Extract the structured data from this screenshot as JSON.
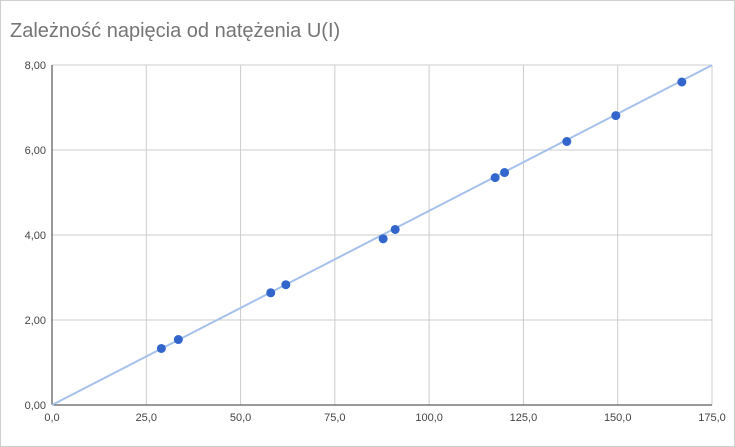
{
  "chart_data": {
    "type": "scatter",
    "title": "Zależność napięcia od natężenia U(I)",
    "xlabel": "",
    "ylabel": "",
    "xlim": [
      0,
      175
    ],
    "ylim": [
      0,
      8
    ],
    "x_ticks": [
      0,
      25,
      50,
      75,
      100,
      125,
      150,
      175
    ],
    "y_ticks": [
      0,
      2,
      4,
      6,
      8
    ],
    "x_tick_labels": [
      "0,0",
      "25,0",
      "50,0",
      "75,0",
      "100,0",
      "125,0",
      "150,0",
      "175,0"
    ],
    "y_tick_labels": [
      "0,00",
      "2,00",
      "4,00",
      "6,00",
      "8,00"
    ],
    "grid": true,
    "legend": "none",
    "series": [
      {
        "color": "#3366cc",
        "points": [
          {
            "x": 29.0,
            "y": 1.33
          },
          {
            "x": 33.5,
            "y": 1.54
          },
          {
            "x": 58.0,
            "y": 2.64
          },
          {
            "x": 62.0,
            "y": 2.83
          },
          {
            "x": 87.8,
            "y": 3.91
          },
          {
            "x": 91.0,
            "y": 4.13
          },
          {
            "x": 117.5,
            "y": 5.35
          },
          {
            "x": 120.0,
            "y": 5.47
          },
          {
            "x": 136.5,
            "y": 6.2
          },
          {
            "x": 149.5,
            "y": 6.81
          },
          {
            "x": 167.0,
            "y": 7.6
          }
        ]
      }
    ],
    "trendline": {
      "type": "linear",
      "color": "#a6c1ea",
      "slope": 0.0457,
      "intercept": 0.0
    }
  }
}
